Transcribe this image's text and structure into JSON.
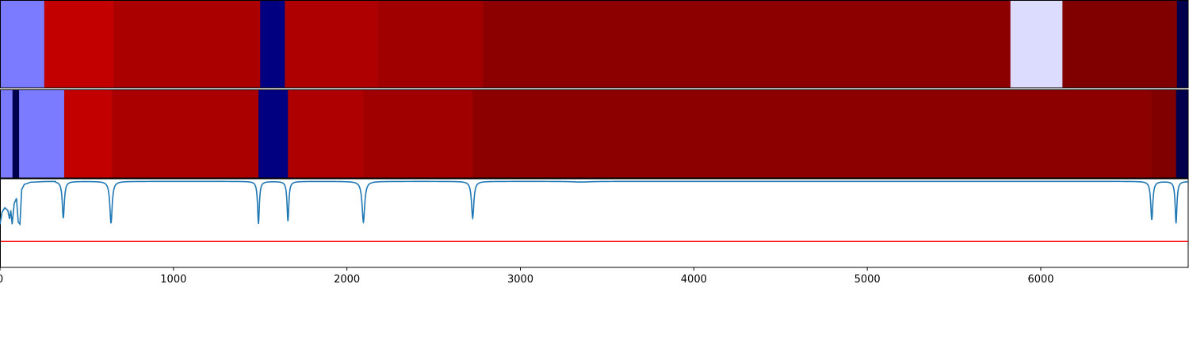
{
  "chart_data": {
    "type": "heatmap",
    "x_ticks": [
      "0",
      "1000",
      "2000",
      "3000",
      "4000",
      "5000",
      "6000"
    ],
    "xlim": [
      0,
      6850
    ],
    "bands": [
      {
        "segments": [
          {
            "start": 0,
            "end": 255,
            "color": "#7b7bff"
          },
          {
            "start": 255,
            "end": 655,
            "color": "#c20000"
          },
          {
            "start": 655,
            "end": 1500,
            "color": "#aa0000"
          },
          {
            "start": 1500,
            "end": 1642,
            "color": "#000080"
          },
          {
            "start": 1642,
            "end": 2180,
            "color": "#ae0000"
          },
          {
            "start": 2180,
            "end": 2785,
            "color": "#a00000"
          },
          {
            "start": 2785,
            "end": 5825,
            "color": "#8c0000"
          },
          {
            "start": 5825,
            "end": 6125,
            "color": "#dcdcff"
          },
          {
            "start": 6125,
            "end": 6785,
            "color": "#800000"
          },
          {
            "start": 6785,
            "end": 6850,
            "color": "#00004c"
          }
        ]
      },
      {
        "segments": [
          {
            "start": 0,
            "end": 72,
            "color": "#7b7bff"
          },
          {
            "start": 72,
            "end": 110,
            "color": "#00004c"
          },
          {
            "start": 110,
            "end": 370,
            "color": "#7b7bff"
          },
          {
            "start": 370,
            "end": 645,
            "color": "#c20000"
          },
          {
            "start": 645,
            "end": 1490,
            "color": "#aa0000"
          },
          {
            "start": 1490,
            "end": 1660,
            "color": "#000080"
          },
          {
            "start": 1660,
            "end": 2095,
            "color": "#ae0000"
          },
          {
            "start": 2095,
            "end": 2725,
            "color": "#a00000"
          },
          {
            "start": 2725,
            "end": 6640,
            "color": "#8c0000"
          },
          {
            "start": 6640,
            "end": 6780,
            "color": "#800000"
          },
          {
            "start": 6780,
            "end": 6850,
            "color": "#00004c"
          }
        ]
      }
    ],
    "signal": {
      "color": "#1f77b4",
      "ylim": [
        -2.0,
        0.05
      ],
      "baseline": -0.01,
      "start": [
        [
          0,
          -1.0
        ],
        [
          12,
          -0.72
        ],
        [
          28,
          -0.62
        ],
        [
          45,
          -0.68
        ],
        [
          55,
          -0.88
        ],
        [
          62,
          -0.68
        ],
        [
          70,
          -1.0
        ],
        [
          82,
          -0.52
        ],
        [
          95,
          -0.4
        ],
        [
          105,
          -0.95
        ],
        [
          115,
          -1.0
        ],
        [
          125,
          -0.2
        ],
        [
          140,
          -0.08
        ],
        [
          175,
          -0.03
        ],
        [
          250,
          -0.015
        ],
        [
          320,
          -0.01
        ]
      ],
      "dips": [
        {
          "x": 365,
          "depth": -0.86,
          "width": 7
        },
        {
          "x": 640,
          "depth": -0.98,
          "width": 8
        },
        {
          "x": 1490,
          "depth": -0.99,
          "width": 6
        },
        {
          "x": 1660,
          "depth": -0.93,
          "width": 6
        },
        {
          "x": 2095,
          "depth": -0.95,
          "width": 9
        },
        {
          "x": 2725,
          "depth": -0.86,
          "width": 8
        },
        {
          "x": 3350,
          "depth": -0.025,
          "width": 60
        },
        {
          "x": 6640,
          "depth": -0.9,
          "width": 7
        },
        {
          "x": 6780,
          "depth": -0.98,
          "width": 6
        }
      ],
      "threshold": {
        "y": -1.4,
        "color": "#ff0000"
      }
    }
  }
}
